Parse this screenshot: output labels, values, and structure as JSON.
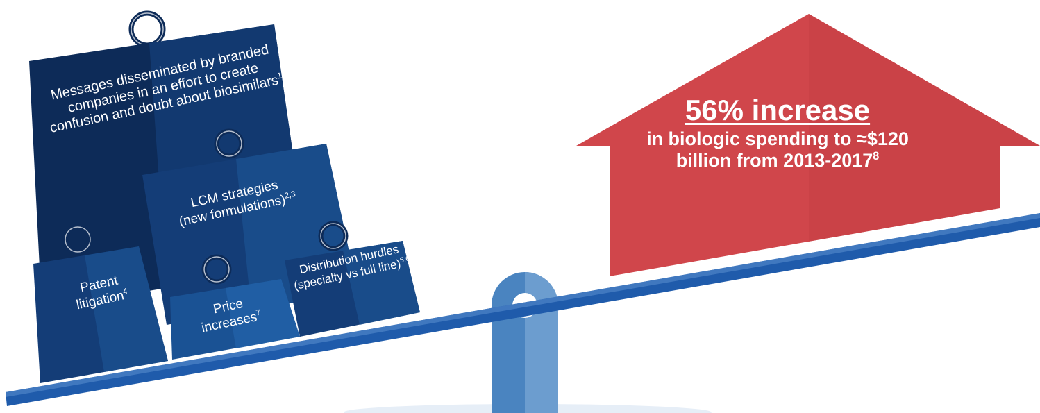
{
  "weights": {
    "messages": {
      "text": "Messages disseminated by branded companies in an effort to create confusion and doubt about biosimilars",
      "ref": "1"
    },
    "lcm": {
      "line1": "LCM strategies",
      "line2": "(new formulations)",
      "ref": "2,3"
    },
    "patent": {
      "line1": "Patent",
      "line2": "litigation",
      "ref": "4"
    },
    "price": {
      "line1": "Price",
      "line2": "increases",
      "ref": "7"
    },
    "distribution": {
      "text": "Distribution hurdles (specialty vs full line)",
      "ref": "5,6"
    }
  },
  "increase": {
    "headline": "56% increase",
    "detail": "in biologic spending to ≈$120 billion from 2013-2017",
    "ref": "8"
  },
  "colors": {
    "weight_dark": "#0d2b58",
    "weight_mid": "#143d77",
    "weight_light": "#1a4f8d",
    "beam": "#1f5bab",
    "pivot": "#4a84c0",
    "arrow": "#d0464b"
  }
}
